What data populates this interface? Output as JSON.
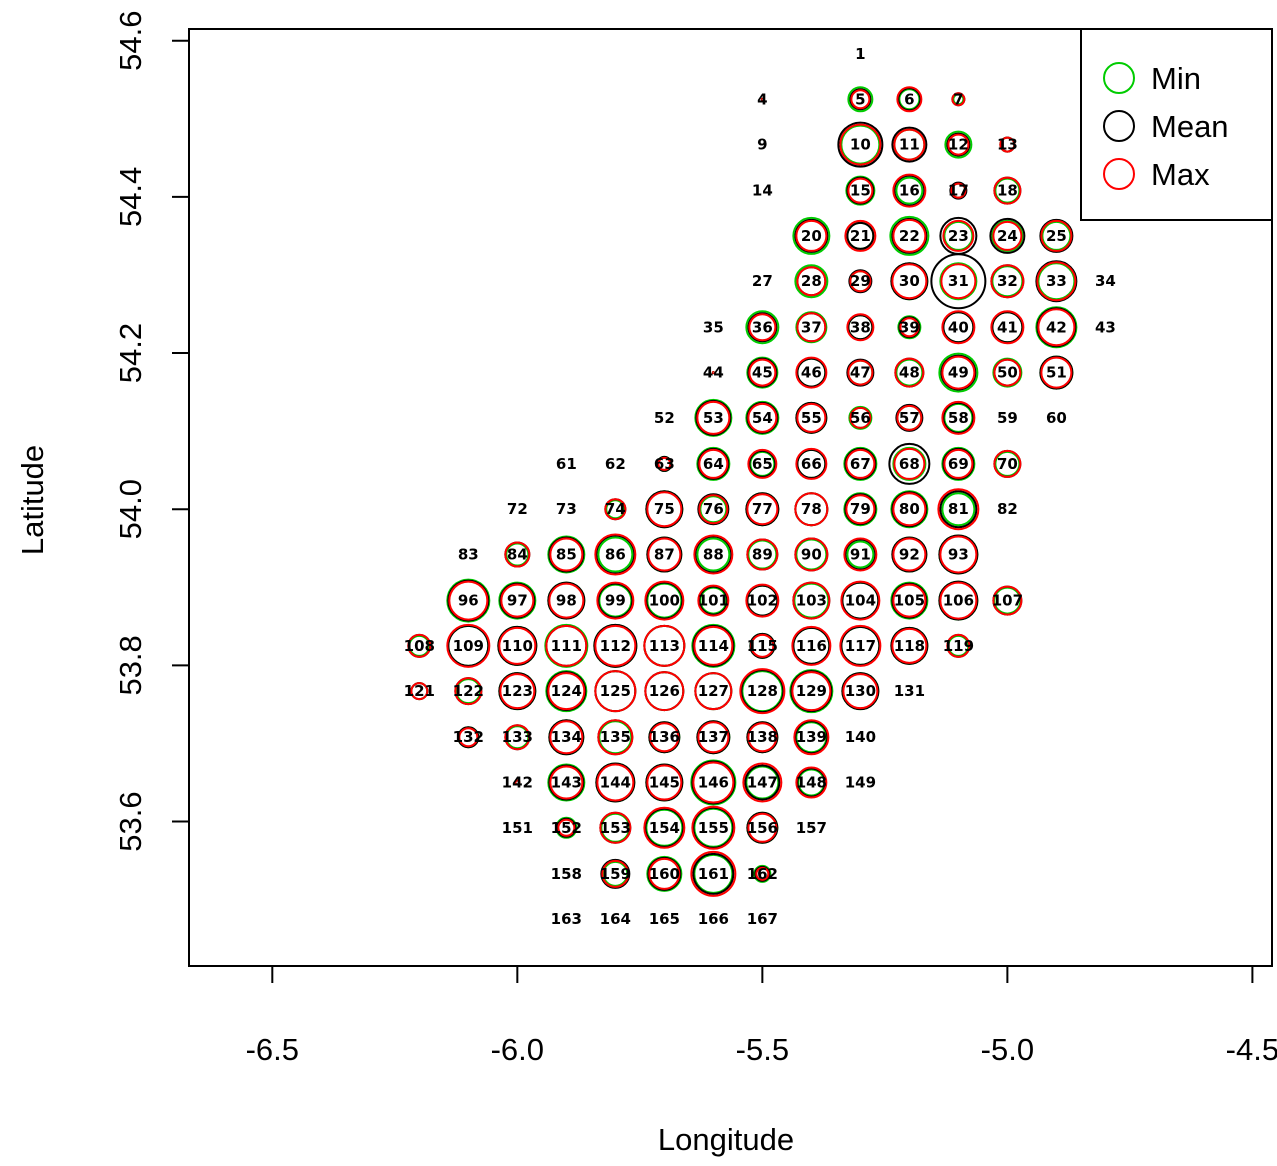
{
  "chart_data": {
    "type": "scatter",
    "xlabel": "Longitude",
    "ylabel": "Latitude",
    "xlim": [
      -6.67,
      -4.46
    ],
    "ylim": [
      53.415,
      54.615
    ],
    "xticks": [
      -6.5,
      -6.0,
      -5.5,
      -5.0,
      -4.5
    ],
    "xtick_labels": [
      "-6.5",
      "-6.0",
      "-5.5",
      "-5.0",
      "-4.5"
    ],
    "yticks": [
      53.6,
      53.8,
      54.0,
      54.2,
      54.4,
      54.6
    ],
    "ytick_labels": [
      "53.6",
      "53.8",
      "54.0",
      "54.2",
      "54.4",
      "54.6"
    ],
    "grid": false,
    "legend_position": "top-right",
    "series": [
      {
        "name": "Min",
        "color": "#00cc00"
      },
      {
        "name": "Mean",
        "color": "#000000"
      },
      {
        "name": "Max",
        "color": "#ff0000"
      }
    ],
    "point_columns": [
      "id",
      "lon",
      "lat",
      "min",
      "mean",
      "max"
    ],
    "points": [
      [
        1,
        -5.3,
        54.583,
        0,
        0,
        0
      ],
      [
        4,
        -5.5,
        54.525,
        0.5,
        0.5,
        0.5
      ],
      [
        5,
        -5.3,
        54.525,
        12,
        10,
        9
      ],
      [
        6,
        -5.2,
        54.525,
        10,
        11,
        12
      ],
      [
        7,
        -5.1,
        54.525,
        5,
        6,
        6
      ],
      [
        9,
        -5.5,
        54.467,
        0,
        0,
        0
      ],
      [
        10,
        -5.3,
        54.467,
        19,
        22,
        20
      ],
      [
        11,
        -5.2,
        54.467,
        15,
        17,
        15
      ],
      [
        12,
        -5.1,
        54.467,
        13,
        11,
        10
      ],
      [
        13,
        -5.0,
        54.467,
        7,
        7,
        7
      ],
      [
        14,
        -5.5,
        54.408,
        0,
        0,
        0
      ],
      [
        15,
        -5.3,
        54.408,
        14,
        13,
        12
      ],
      [
        16,
        -5.2,
        54.408,
        13,
        15,
        16
      ],
      [
        17,
        -5.1,
        54.408,
        7,
        8,
        7
      ],
      [
        18,
        -5.0,
        54.408,
        12,
        13,
        13
      ],
      [
        20,
        -5.4,
        54.35,
        18,
        16,
        15
      ],
      [
        21,
        -5.3,
        54.35,
        13,
        13,
        15
      ],
      [
        22,
        -5.2,
        54.35,
        19,
        17,
        16
      ],
      [
        23,
        -5.1,
        54.35,
        14,
        18,
        15
      ],
      [
        24,
        -5.0,
        54.35,
        15,
        17,
        14
      ],
      [
        25,
        -4.9,
        54.35,
        14,
        16,
        15
      ],
      [
        27,
        -5.5,
        54.292,
        0,
        0,
        0
      ],
      [
        28,
        -5.4,
        54.292,
        16,
        14,
        14
      ],
      [
        29,
        -5.3,
        54.292,
        10,
        11,
        10
      ],
      [
        30,
        -5.2,
        54.292,
        18,
        18,
        17
      ],
      [
        31,
        -5.1,
        54.292,
        18,
        27,
        17
      ],
      [
        32,
        -5.0,
        54.292,
        15,
        16,
        16
      ],
      [
        33,
        -4.9,
        54.292,
        18,
        20,
        19
      ],
      [
        34,
        -4.8,
        54.292,
        0,
        0,
        0
      ],
      [
        35,
        -5.6,
        54.233,
        0,
        0,
        0
      ],
      [
        36,
        -5.5,
        54.233,
        16,
        14,
        13
      ],
      [
        37,
        -5.4,
        54.233,
        15,
        14,
        14
      ],
      [
        38,
        -5.3,
        54.233,
        12,
        12,
        13
      ],
      [
        39,
        -5.2,
        54.233,
        11,
        10,
        9
      ],
      [
        40,
        -5.1,
        54.233,
        15,
        15,
        16
      ],
      [
        41,
        -5.0,
        54.233,
        15,
        15,
        16
      ],
      [
        42,
        -4.9,
        54.233,
        20,
        19,
        18
      ],
      [
        43,
        -4.8,
        54.233,
        0,
        0,
        0
      ],
      [
        44,
        -5.6,
        54.175,
        0.5,
        0.5,
        0.5
      ],
      [
        45,
        -5.5,
        54.175,
        15,
        14,
        13
      ],
      [
        46,
        -5.4,
        54.175,
        14,
        14,
        15
      ],
      [
        47,
        -5.3,
        54.175,
        12,
        13,
        12
      ],
      [
        48,
        -5.2,
        54.175,
        13,
        14,
        14
      ],
      [
        49,
        -5.1,
        54.175,
        19,
        17,
        16
      ],
      [
        50,
        -5.0,
        54.175,
        14,
        13,
        13
      ],
      [
        51,
        -4.9,
        54.175,
        16,
        16,
        15
      ],
      [
        52,
        -5.7,
        54.117,
        0,
        0,
        0
      ],
      [
        53,
        -5.6,
        54.117,
        18,
        17,
        16
      ],
      [
        54,
        -5.5,
        54.117,
        16,
        15,
        14
      ],
      [
        55,
        -5.4,
        54.117,
        15,
        15,
        14
      ],
      [
        56,
        -5.3,
        54.117,
        11,
        10,
        10
      ],
      [
        57,
        -5.2,
        54.117,
        12,
        13,
        12
      ],
      [
        58,
        -5.1,
        54.117,
        14,
        15,
        16
      ],
      [
        59,
        -5.0,
        54.117,
        0,
        0,
        0
      ],
      [
        60,
        -4.9,
        54.117,
        0,
        0,
        0
      ],
      [
        61,
        -5.9,
        54.058,
        0,
        0,
        0
      ],
      [
        62,
        -5.8,
        54.058,
        0,
        0,
        0
      ],
      [
        63,
        -5.7,
        54.058,
        7,
        7,
        6
      ],
      [
        64,
        -5.6,
        54.058,
        16,
        15,
        14
      ],
      [
        65,
        -5.5,
        54.058,
        12,
        13,
        14
      ],
      [
        66,
        -5.4,
        54.058,
        14,
        14,
        15
      ],
      [
        67,
        -5.3,
        54.058,
        16,
        15,
        14
      ],
      [
        68,
        -5.2,
        54.058,
        16,
        20,
        15
      ],
      [
        69,
        -5.1,
        54.058,
        16,
        15,
        14
      ],
      [
        70,
        -5.0,
        54.058,
        12,
        13,
        13
      ],
      [
        72,
        -6.0,
        54.0,
        0,
        0,
        0
      ],
      [
        73,
        -5.9,
        54.0,
        0,
        0,
        0
      ],
      [
        74,
        -5.8,
        54.0,
        9,
        10,
        10
      ],
      [
        75,
        -5.7,
        54.0,
        18,
        18,
        17
      ],
      [
        76,
        -5.6,
        54.0,
        13,
        15,
        14
      ],
      [
        77,
        -5.5,
        54.0,
        16,
        16,
        15
      ],
      [
        78,
        -5.4,
        54.0,
        16,
        16,
        16
      ],
      [
        79,
        -5.3,
        54.0,
        16,
        15,
        14
      ],
      [
        80,
        -5.2,
        54.0,
        18,
        17,
        16
      ],
      [
        81,
        -5.1,
        54.0,
        16,
        18,
        20
      ],
      [
        82,
        -5.0,
        54.0,
        0,
        0,
        0
      ],
      [
        83,
        -6.1,
        53.942,
        0,
        0,
        0
      ],
      [
        84,
        -6.0,
        53.942,
        11,
        12,
        12
      ],
      [
        85,
        -5.9,
        53.942,
        18,
        17,
        16
      ],
      [
        86,
        -5.8,
        53.942,
        17,
        19,
        20
      ],
      [
        87,
        -5.7,
        53.942,
        17,
        17,
        16
      ],
      [
        88,
        -5.6,
        53.942,
        16,
        18,
        19
      ],
      [
        89,
        -5.5,
        53.942,
        14,
        15,
        15
      ],
      [
        90,
        -5.4,
        53.942,
        15,
        16,
        16
      ],
      [
        91,
        -5.3,
        53.942,
        13,
        15,
        16
      ],
      [
        92,
        -5.2,
        53.942,
        17,
        17,
        16
      ],
      [
        93,
        -5.1,
        53.942,
        19,
        19,
        18
      ],
      [
        96,
        -6.1,
        53.883,
        21,
        20,
        19
      ],
      [
        97,
        -6.0,
        53.883,
        18,
        17,
        16
      ],
      [
        98,
        -5.9,
        53.883,
        18,
        18,
        17
      ],
      [
        99,
        -5.8,
        53.883,
        16,
        17,
        18
      ],
      [
        100,
        -5.7,
        53.883,
        17,
        18,
        19
      ],
      [
        101,
        -5.6,
        53.883,
        13,
        14,
        15
      ],
      [
        102,
        -5.5,
        53.883,
        15,
        15,
        16
      ],
      [
        103,
        -5.4,
        53.883,
        17,
        18,
        18
      ],
      [
        104,
        -5.3,
        53.883,
        18,
        18,
        19
      ],
      [
        105,
        -5.2,
        53.883,
        18,
        17,
        16
      ],
      [
        106,
        -5.1,
        53.883,
        19,
        19,
        18
      ],
      [
        107,
        -5.0,
        53.883,
        13,
        14,
        14
      ],
      [
        108,
        -6.2,
        53.825,
        10,
        11,
        11
      ],
      [
        109,
        -6.1,
        53.825,
        20,
        20,
        21
      ],
      [
        110,
        -6.0,
        53.825,
        19,
        19,
        18
      ],
      [
        111,
        -5.9,
        53.825,
        21,
        20,
        20
      ],
      [
        112,
        -5.8,
        53.825,
        21,
        21,
        20
      ],
      [
        113,
        -5.7,
        53.825,
        20,
        20,
        20
      ],
      [
        114,
        -5.6,
        53.825,
        21,
        20,
        19
      ],
      [
        115,
        -5.5,
        53.825,
        12,
        12,
        11
      ],
      [
        116,
        -5.4,
        53.825,
        18,
        18,
        19
      ],
      [
        117,
        -5.3,
        53.825,
        19,
        19,
        20
      ],
      [
        118,
        -5.2,
        53.825,
        18,
        18,
        17
      ],
      [
        119,
        -5.1,
        53.825,
        10,
        11,
        11
      ],
      [
        121,
        -6.2,
        53.767,
        8,
        8,
        8
      ],
      [
        122,
        -6.1,
        53.767,
        12,
        13,
        13
      ],
      [
        123,
        -6.0,
        53.767,
        18,
        18,
        17
      ],
      [
        124,
        -5.9,
        53.767,
        20,
        19,
        18
      ],
      [
        125,
        -5.8,
        53.767,
        20,
        20,
        20
      ],
      [
        126,
        -5.7,
        53.767,
        19,
        19,
        19
      ],
      [
        127,
        -5.6,
        53.767,
        18,
        18,
        18
      ],
      [
        128,
        -5.5,
        53.767,
        20,
        21,
        22
      ],
      [
        129,
        -5.4,
        53.767,
        21,
        20,
        19
      ],
      [
        130,
        -5.3,
        53.767,
        18,
        18,
        17
      ],
      [
        131,
        -5.2,
        53.767,
        0,
        0,
        0
      ],
      [
        132,
        -6.1,
        53.708,
        10,
        10,
        9
      ],
      [
        133,
        -6.0,
        53.708,
        11,
        12,
        12
      ],
      [
        134,
        -5.9,
        53.708,
        17,
        17,
        16
      ],
      [
        135,
        -5.8,
        53.708,
        16,
        17,
        17
      ],
      [
        136,
        -5.7,
        53.708,
        15,
        15,
        14
      ],
      [
        137,
        -5.6,
        53.708,
        16,
        16,
        15
      ],
      [
        138,
        -5.5,
        53.708,
        15,
        15,
        14
      ],
      [
        139,
        -5.4,
        53.708,
        15,
        16,
        17
      ],
      [
        140,
        -5.3,
        53.708,
        0,
        0,
        0
      ],
      [
        142,
        -6.0,
        53.65,
        2,
        2,
        2
      ],
      [
        143,
        -5.9,
        53.65,
        18,
        17,
        16
      ],
      [
        144,
        -5.8,
        53.65,
        19,
        19,
        18
      ],
      [
        145,
        -5.7,
        53.65,
        18,
        18,
        17
      ],
      [
        146,
        -5.6,
        53.65,
        22,
        21,
        20
      ],
      [
        147,
        -5.5,
        53.65,
        16,
        17,
        19
      ],
      [
        148,
        -5.4,
        53.65,
        13,
        14,
        15
      ],
      [
        149,
        -5.3,
        53.65,
        0,
        0,
        0
      ],
      [
        151,
        -6.0,
        53.592,
        0,
        0,
        0
      ],
      [
        152,
        -5.9,
        53.592,
        10,
        9,
        8
      ],
      [
        153,
        -5.8,
        53.592,
        14,
        15,
        15
      ],
      [
        154,
        -5.7,
        53.592,
        18,
        19,
        20
      ],
      [
        155,
        -5.6,
        53.592,
        19,
        20,
        21
      ],
      [
        156,
        -5.5,
        53.592,
        15,
        15,
        14
      ],
      [
        157,
        -5.4,
        53.592,
        0,
        0,
        0
      ],
      [
        158,
        -5.9,
        53.533,
        0,
        0,
        0
      ],
      [
        159,
        -5.8,
        53.533,
        12,
        14,
        13
      ],
      [
        160,
        -5.7,
        53.533,
        17,
        16,
        15
      ],
      [
        161,
        -5.6,
        53.533,
        19,
        20,
        22
      ],
      [
        162,
        -5.5,
        53.533,
        8,
        7,
        6
      ],
      [
        163,
        -5.9,
        53.475,
        0,
        0,
        0
      ],
      [
        164,
        -5.8,
        53.475,
        0,
        0,
        0
      ],
      [
        165,
        -5.7,
        53.475,
        0,
        0,
        0
      ],
      [
        166,
        -5.6,
        53.475,
        0,
        0,
        0
      ],
      [
        167,
        -5.5,
        53.475,
        0,
        0,
        0
      ]
    ]
  }
}
